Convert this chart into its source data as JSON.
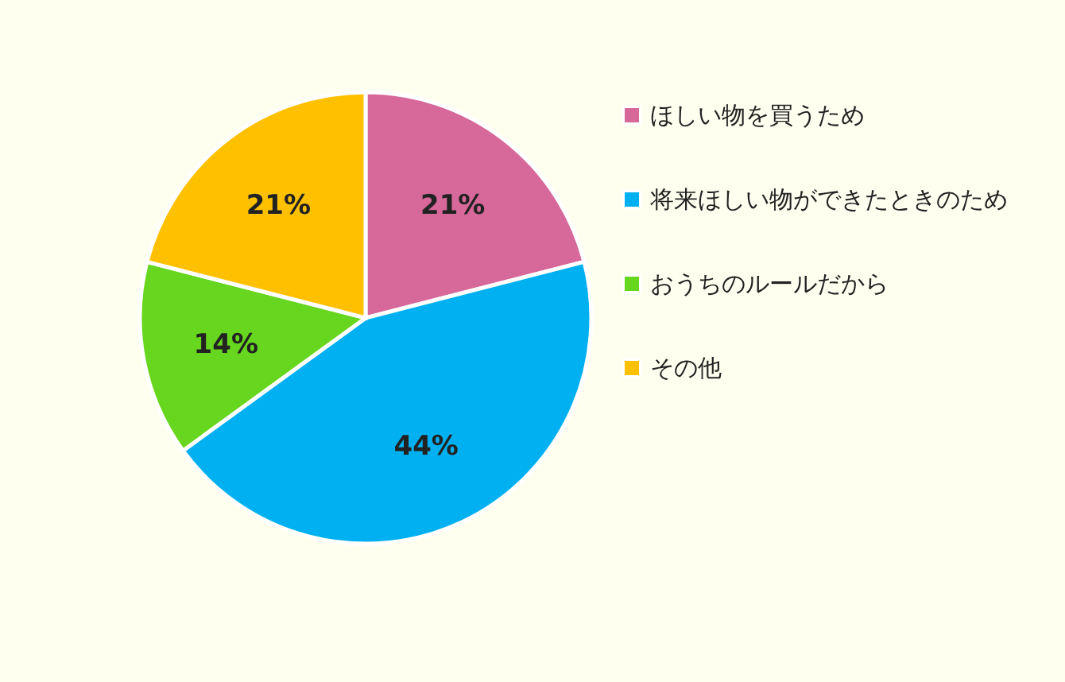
{
  "chart_data": {
    "type": "pie",
    "categories": [
      "ほしい物を買うため",
      "将来ほしい物ができたときのため",
      "おうちのルールだから",
      "その他"
    ],
    "values": [
      21,
      44,
      14,
      21
    ],
    "colors": [
      "#d6689a",
      "#00b0f0",
      "#66d61e",
      "#ffc000"
    ],
    "value_labels": [
      "21%",
      "44%",
      "14%",
      "21%"
    ],
    "legend": "right"
  }
}
